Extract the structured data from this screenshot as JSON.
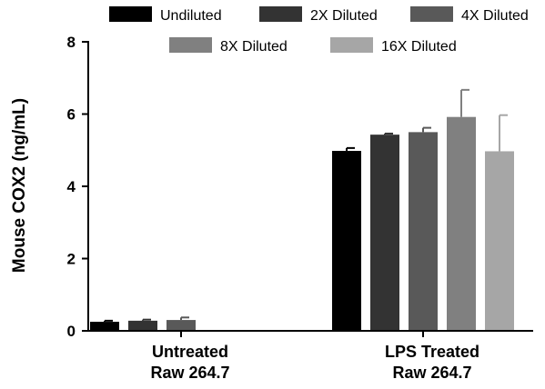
{
  "chart_data": {
    "type": "bar",
    "title": "",
    "xlabel": "",
    "ylabel": "Mouse COX2 (ng/mL)",
    "ylim": [
      0,
      8
    ],
    "yticks": [
      0,
      2,
      4,
      6,
      8
    ],
    "grid": false,
    "legend_position": "top",
    "categories": [
      [
        "Untreated",
        "Raw 264.7"
      ],
      [
        "LPS Treated",
        "Raw 264.7"
      ]
    ],
    "series": [
      {
        "name": "Undiluted",
        "color": "#000000",
        "values": [
          0.25,
          4.98
        ],
        "errors": [
          0.03,
          0.08
        ]
      },
      {
        "name": "2X Diluted",
        "color": "#333333",
        "values": [
          0.28,
          5.43
        ],
        "errors": [
          0.03,
          0.03
        ]
      },
      {
        "name": "4X Diluted",
        "color": "#595959",
        "values": [
          0.3,
          5.5
        ],
        "errors": [
          0.07,
          0.12
        ]
      },
      {
        "name": "8X Diluted",
        "color": "#808080",
        "values": [
          null,
          5.92
        ],
        "errors": [
          null,
          0.75
        ]
      },
      {
        "name": "16X Diluted",
        "color": "#a6a6a6",
        "values": [
          null,
          4.97
        ],
        "errors": [
          null,
          1.0
        ]
      }
    ]
  }
}
